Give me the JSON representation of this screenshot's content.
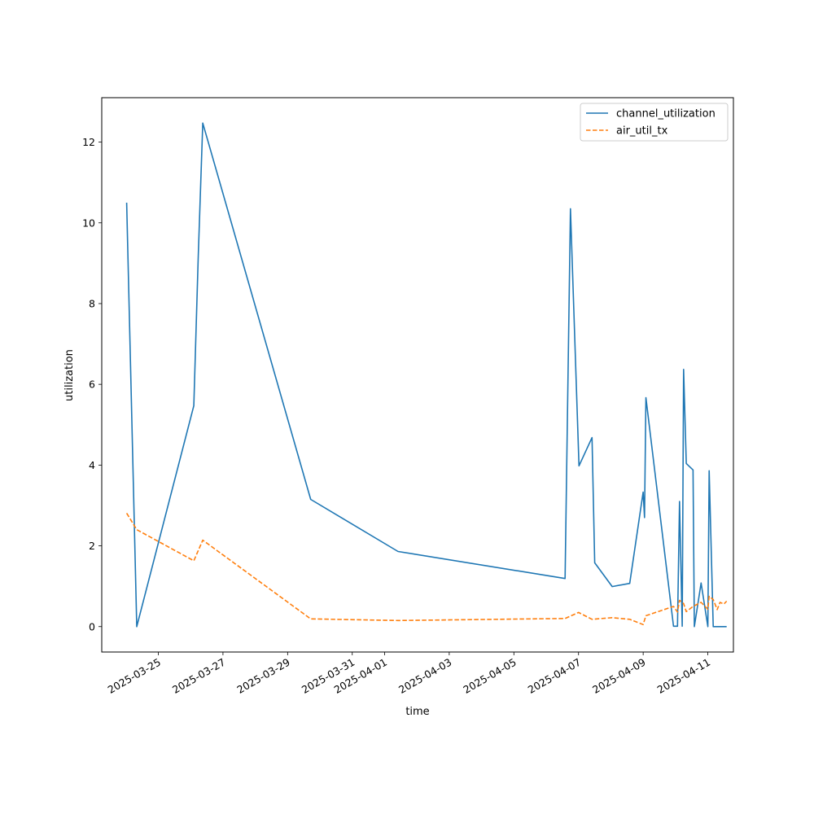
{
  "chart_data": {
    "type": "line",
    "xlabel": "time",
    "ylabel": "utilization",
    "xlim": [
      "2025-03-23T06:00",
      "2025-04-11T19:00"
    ],
    "ylim": [
      -0.63,
      13.1
    ],
    "x_ticks": [
      "2025-03-25",
      "2025-03-27",
      "2025-03-29",
      "2025-03-31",
      "2025-04-01",
      "2025-04-03",
      "2025-04-05",
      "2025-04-07",
      "2025-04-09",
      "2025-04-11"
    ],
    "y_ticks": [
      0,
      2,
      4,
      6,
      8,
      10,
      12
    ],
    "y_tick_labels": [
      "0",
      "2",
      "4",
      "6",
      "8",
      "10",
      "12"
    ],
    "grid": false,
    "legend_position": "upper-right",
    "series": [
      {
        "name": "channel_utilization",
        "color": "#1f77b4",
        "style": "solid",
        "points": [
          [
            "2025-03-24T00:30",
            10.5
          ],
          [
            "2025-03-24T08:00",
            0.0
          ],
          [
            "2025-03-26T02:20",
            5.47
          ],
          [
            "2025-03-26T05:40",
            9.2
          ],
          [
            "2025-03-26T09:00",
            12.47
          ],
          [
            "2025-03-29T17:10",
            3.15
          ],
          [
            "2025-04-01T10:00",
            1.86
          ],
          [
            "2025-04-06T14:00",
            1.19
          ],
          [
            "2025-04-06T18:00",
            10.35
          ],
          [
            "2025-04-07T00:20",
            3.98
          ],
          [
            "2025-04-07T10:00",
            4.68
          ],
          [
            "2025-04-07T12:00",
            1.58
          ],
          [
            "2025-04-08T01:00",
            0.99
          ],
          [
            "2025-04-08T14:00",
            1.07
          ],
          [
            "2025-04-09T00:00",
            3.33
          ],
          [
            "2025-04-09T01:00",
            2.7
          ],
          [
            "2025-04-09T02:00",
            5.67
          ],
          [
            "2025-04-09T22:30",
            0.01
          ],
          [
            "2025-04-10T01:30",
            0.01
          ],
          [
            "2025-04-10T03:00",
            3.1
          ],
          [
            "2025-04-10T05:00",
            0.01
          ],
          [
            "2025-04-10T06:00",
            6.37
          ],
          [
            "2025-04-10T08:00",
            4.04
          ],
          [
            "2025-04-10T13:00",
            3.88
          ],
          [
            "2025-04-10T14:00",
            0.0
          ],
          [
            "2025-04-10T19:00",
            1.08
          ],
          [
            "2025-04-11T00:00",
            0.0
          ],
          [
            "2025-04-11T01:00",
            3.86
          ],
          [
            "2025-04-11T04:00",
            0.0
          ],
          [
            "2025-04-11T14:00",
            0.0
          ]
        ]
      },
      {
        "name": "air_util_tx",
        "color": "#ff7f0e",
        "style": "dashed",
        "points": [
          [
            "2025-03-24T00:30",
            2.81
          ],
          [
            "2025-03-24T08:00",
            2.4
          ],
          [
            "2025-03-26T02:20",
            1.63
          ],
          [
            "2025-03-26T09:00",
            2.14
          ],
          [
            "2025-03-29T17:10",
            0.19
          ],
          [
            "2025-04-01T10:00",
            0.15
          ],
          [
            "2025-04-06T14:00",
            0.2
          ],
          [
            "2025-04-07T00:00",
            0.35
          ],
          [
            "2025-04-07T10:00",
            0.18
          ],
          [
            "2025-04-08T01:00",
            0.22
          ],
          [
            "2025-04-08T14:00",
            0.18
          ],
          [
            "2025-04-09T00:00",
            0.05
          ],
          [
            "2025-04-09T02:00",
            0.27
          ],
          [
            "2025-04-09T22:30",
            0.5
          ],
          [
            "2025-04-10T01:30",
            0.36
          ],
          [
            "2025-04-10T03:00",
            0.65
          ],
          [
            "2025-04-10T06:00",
            0.57
          ],
          [
            "2025-04-10T08:00",
            0.37
          ],
          [
            "2025-04-10T13:00",
            0.5
          ],
          [
            "2025-04-10T19:00",
            0.6
          ],
          [
            "2025-04-11T00:00",
            0.43
          ],
          [
            "2025-04-11T01:00",
            0.75
          ],
          [
            "2025-04-11T04:00",
            0.67
          ],
          [
            "2025-04-11T07:00",
            0.42
          ],
          [
            "2025-04-11T09:00",
            0.6
          ],
          [
            "2025-04-11T12:00",
            0.56
          ],
          [
            "2025-04-11T14:00",
            0.63
          ]
        ]
      }
    ]
  }
}
